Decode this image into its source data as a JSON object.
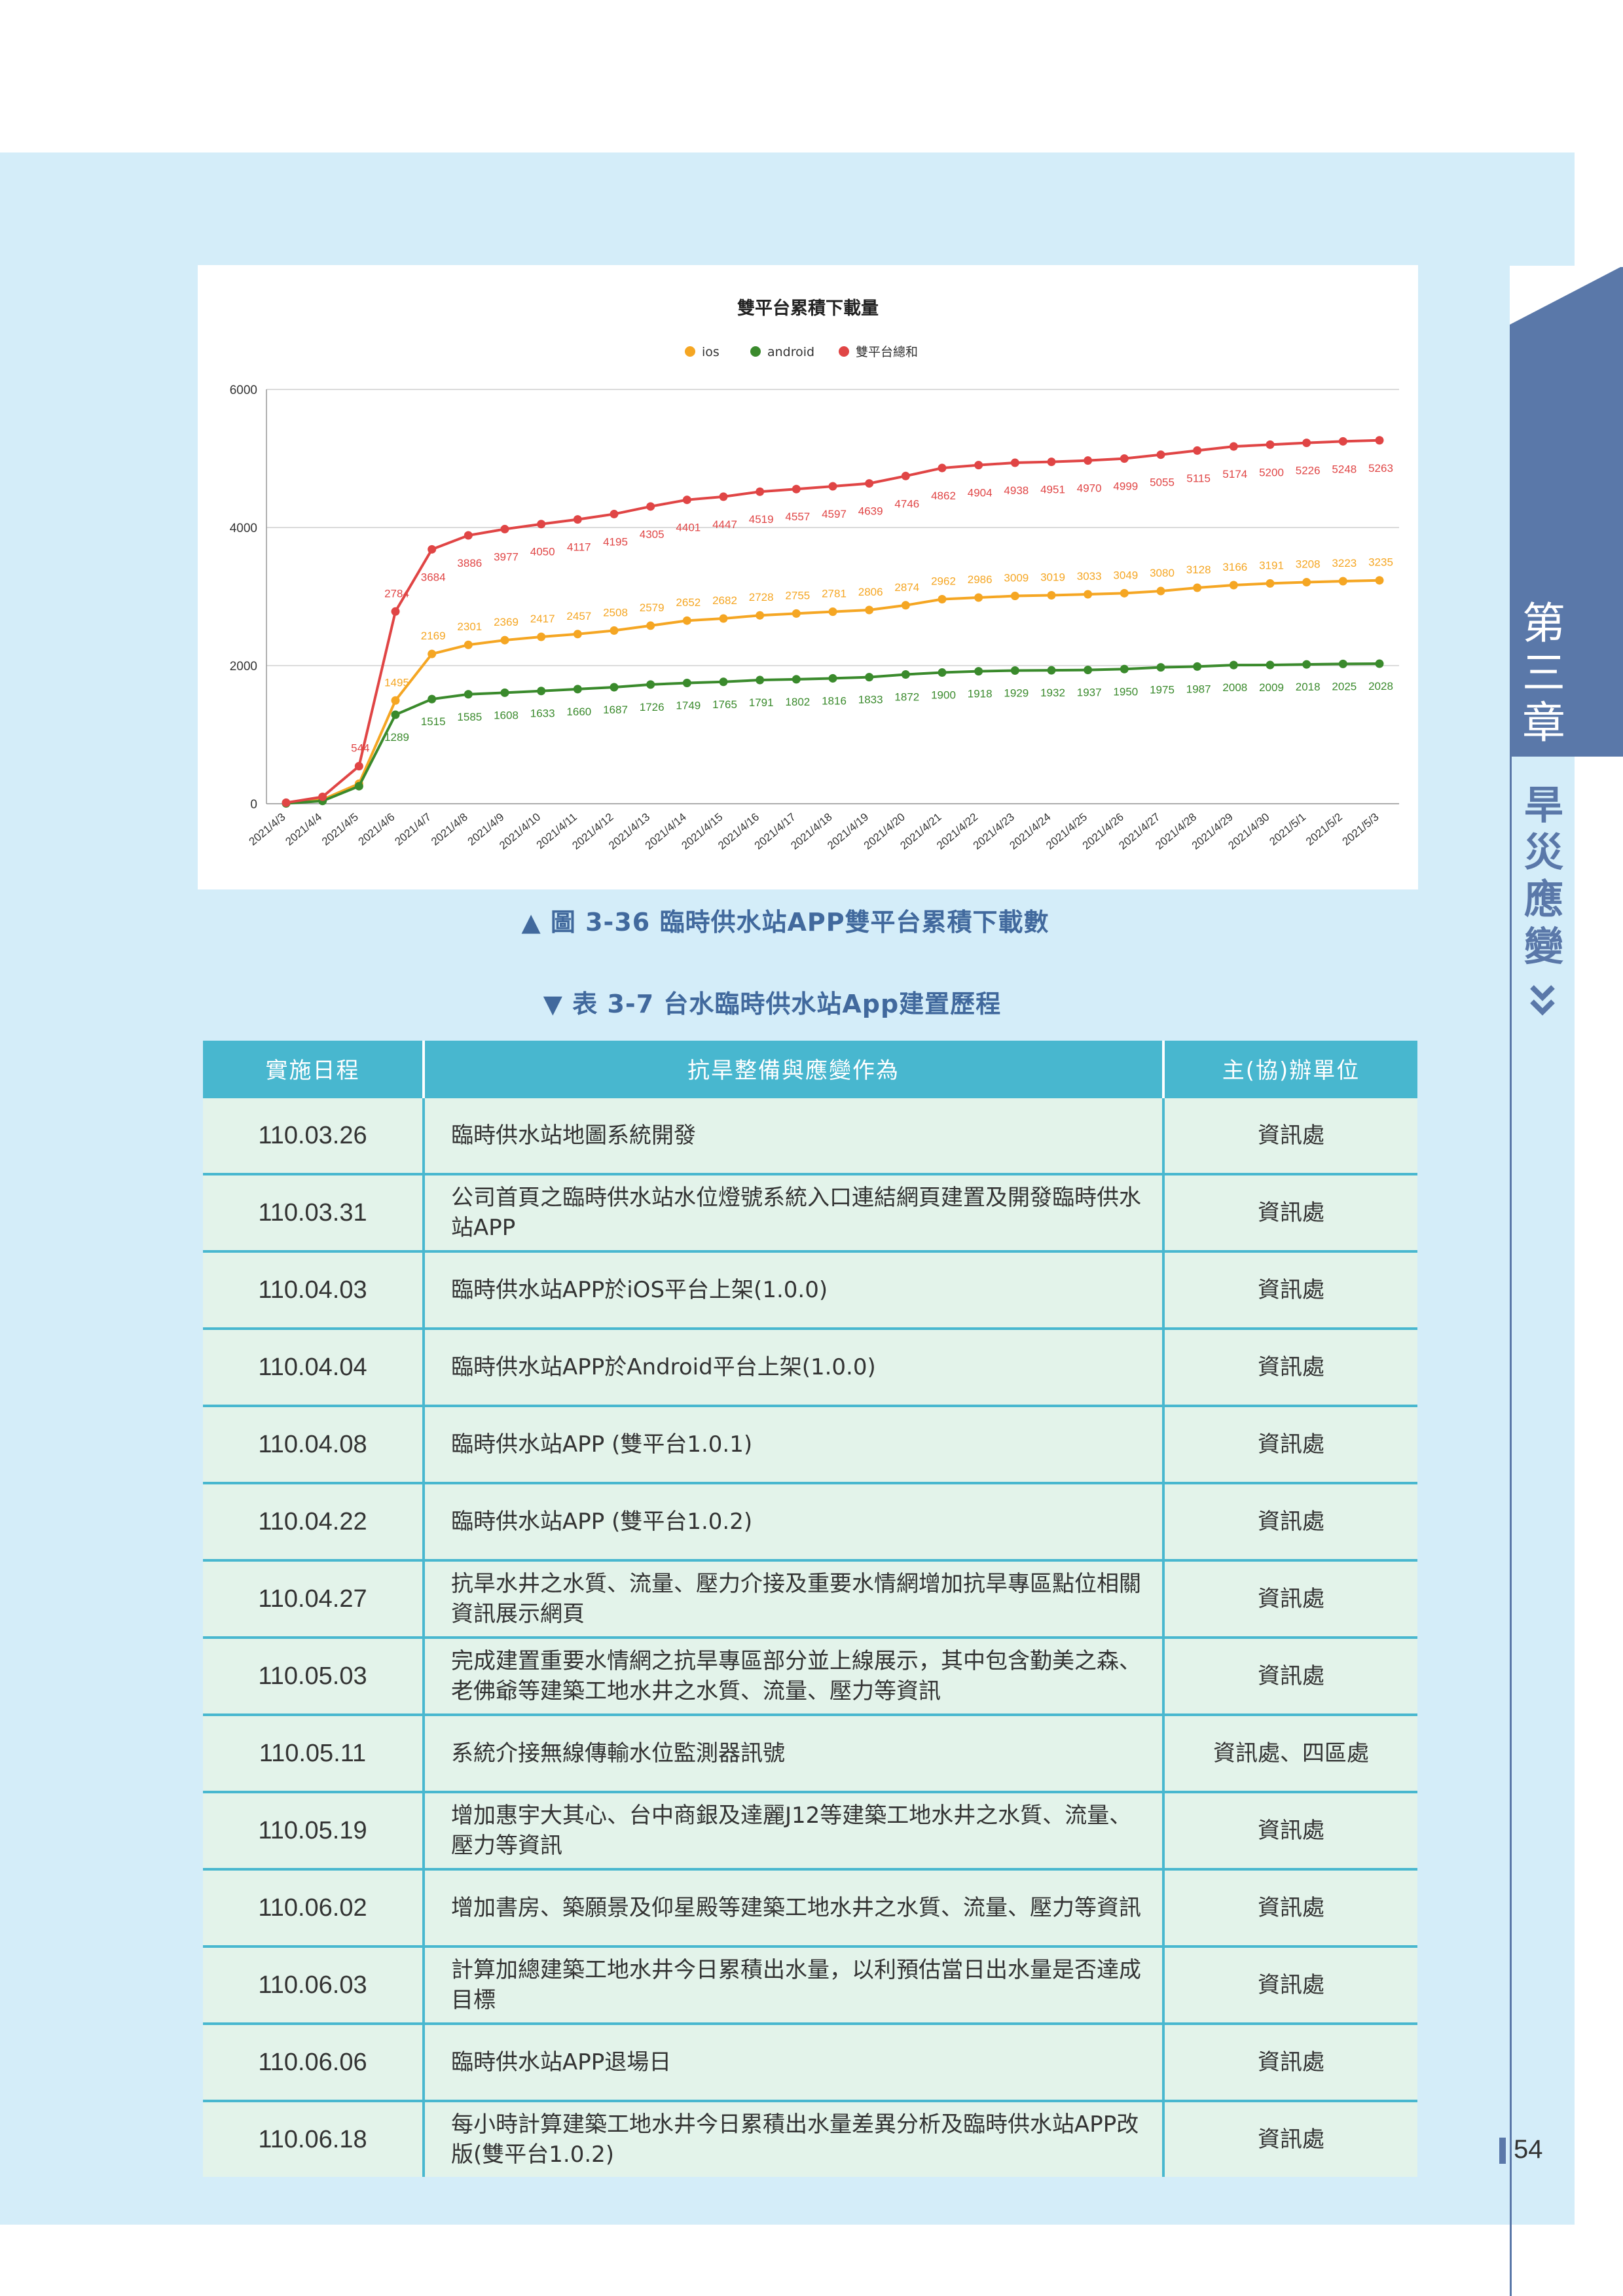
{
  "figure_caption": "▲ 圖 3-36  臨時供水站APP雙平台累積下載數",
  "table_caption": "▼ 表 3-7  台水臨時供水站App建置歷程",
  "sidebar": {
    "chapter": [
      "第",
      "三",
      "章"
    ],
    "section": [
      "旱",
      "災",
      "應",
      "變"
    ]
  },
  "page_number": "54",
  "colors": {
    "ios": "#f5a623",
    "android": "#3a8a2c",
    "total": "#e04545",
    "header": "#48b7cf",
    "row": "#e3f3ea",
    "panel": "#d4edf9",
    "tab": "#5a78a9"
  },
  "chart_data": {
    "type": "line",
    "title": "雙平台累積下載量",
    "ylim": [
      0,
      6000
    ],
    "yticks": [
      0,
      2000,
      4000,
      6000
    ],
    "grid": true,
    "legend_placement": "top-center",
    "x": [
      "2021/4/3",
      "2021/4/4",
      "2021/4/5",
      "2021/4/6",
      "2021/4/7",
      "2021/4/8",
      "2021/4/9",
      "2021/4/10",
      "2021/4/11",
      "2021/4/12",
      "2021/4/13",
      "2021/4/14",
      "2021/4/15",
      "2021/4/16",
      "2021/4/17",
      "2021/4/18",
      "2021/4/19",
      "2021/4/20",
      "2021/4/21",
      "2021/4/22",
      "2021/4/23",
      "2021/4/24",
      "2021/4/25",
      "2021/4/26",
      "2021/4/27",
      "2021/4/28",
      "2021/4/29",
      "2021/4/30",
      "2021/5/1",
      "2021/5/2",
      "2021/5/3"
    ],
    "series": [
      {
        "name": "ios",
        "color": "#f5a623",
        "values": [
          10,
          60,
          290,
          1495,
          2169,
          2301,
          2369,
          2417,
          2457,
          2508,
          2579,
          2652,
          2682,
          2728,
          2755,
          2781,
          2806,
          2874,
          2962,
          2986,
          3009,
          3019,
          3033,
          3049,
          3080,
          3128,
          3166,
          3191,
          3208,
          3223,
          3235
        ],
        "labels": [
          null,
          null,
          null,
          "1495",
          "2169",
          "2301",
          "2369",
          "2417",
          "2457",
          "2508",
          "2579",
          "2652",
          "2682",
          "2728",
          "2755",
          "2781",
          "2806",
          "2874",
          "2962",
          "2986",
          "3009",
          "3019",
          "3033",
          "3049",
          "3080",
          "3128",
          "3166",
          "3191",
          "3208",
          "3223",
          "3235"
        ]
      },
      {
        "name": "android",
        "color": "#3a8a2c",
        "values": [
          5,
          40,
          254,
          1289,
          1515,
          1585,
          1608,
          1633,
          1660,
          1687,
          1726,
          1749,
          1765,
          1791,
          1802,
          1816,
          1833,
          1872,
          1900,
          1918,
          1929,
          1932,
          1937,
          1950,
          1975,
          1987,
          2008,
          2009,
          2018,
          2025,
          2028
        ],
        "labels": [
          null,
          null,
          null,
          "1289",
          "1515",
          "1585",
          "1608",
          "1633",
          "1660",
          "1687",
          "1726",
          "1749",
          "1765",
          "1791",
          "1802",
          "1816",
          "1833",
          "1872",
          "1900",
          "1918",
          "1929",
          "1932",
          "1937",
          "1950",
          "1975",
          "1987",
          "2008",
          "2009",
          "2018",
          "2025",
          "2028"
        ]
      },
      {
        "name": "雙平台總和",
        "color": "#e04545",
        "values": [
          15,
          100,
          544,
          2784,
          3684,
          3886,
          3977,
          4050,
          4117,
          4195,
          4305,
          4401,
          4447,
          4519,
          4557,
          4597,
          4639,
          4746,
          4862,
          4904,
          4938,
          4951,
          4970,
          4999,
          5055,
          5115,
          5174,
          5200,
          5226,
          5248,
          5263
        ],
        "labels": [
          null,
          null,
          "544",
          "2784",
          "3684",
          "3886",
          "3977",
          "4050",
          "4117",
          "4195",
          "4305",
          "4401",
          "4447",
          "4519",
          "4557",
          "4597",
          "4639",
          "4746",
          "4862",
          "4904",
          "4938",
          "4951",
          "4970",
          "4999",
          "5055",
          "5115",
          "5174",
          "5200",
          "5226",
          "5248",
          "5263"
        ]
      }
    ]
  },
  "table": {
    "headers": [
      "實施日程",
      "抗旱整備與應變作為",
      "主(協)辦單位"
    ],
    "rows": [
      {
        "date": "110.03.26",
        "action": "臨時供水站地圖系統開發",
        "unit": "資訊處"
      },
      {
        "date": "110.03.31",
        "action": "公司首頁之臨時供水站水位燈號系統入口連結網頁建置及開發臨時供水站APP",
        "unit": "資訊處"
      },
      {
        "date": "110.04.03",
        "action": "臨時供水站APP於iOS平台上架(1.0.0)",
        "unit": "資訊處"
      },
      {
        "date": "110.04.04",
        "action": "臨時供水站APP於Android平台上架(1.0.0)",
        "unit": "資訊處"
      },
      {
        "date": "110.04.08",
        "action": "臨時供水站APP (雙平台1.0.1)",
        "unit": "資訊處"
      },
      {
        "date": "110.04.22",
        "action": "臨時供水站APP (雙平台1.0.2)",
        "unit": "資訊處"
      },
      {
        "date": "110.04.27",
        "action": "抗旱水井之水質、流量、壓力介接及重要水情網增加抗旱專區點位相關資訊展示網頁",
        "unit": "資訊處"
      },
      {
        "date": "110.05.03",
        "action": "完成建置重要水情網之抗旱專區部分並上線展示，其中包含勤美之森、老佛爺等建築工地水井之水質、流量、壓力等資訊",
        "unit": "資訊處"
      },
      {
        "date": "110.05.11",
        "action": "系統介接無線傳輸水位監測器訊號",
        "unit": "資訊處、四區處"
      },
      {
        "date": "110.05.19",
        "action": "增加惠宇大其心、台中商銀及達麗J12等建築工地水井之水質、流量、壓力等資訊",
        "unit": "資訊處"
      },
      {
        "date": "110.06.02",
        "action": "增加書房、築願景及仰星殿等建築工地水井之水質、流量、壓力等資訊",
        "unit": "資訊處"
      },
      {
        "date": "110.06.03",
        "action": "計算加總建築工地水井今日累積出水量，以利預估當日出水量是否達成目標",
        "unit": "資訊處"
      },
      {
        "date": "110.06.06",
        "action": "臨時供水站APP退場日",
        "unit": "資訊處"
      },
      {
        "date": "110.06.18",
        "action": "每小時計算建築工地水井今日累積出水量差異分析及臨時供水站APP改版(雙平台1.0.2)",
        "unit": "資訊處"
      }
    ]
  }
}
